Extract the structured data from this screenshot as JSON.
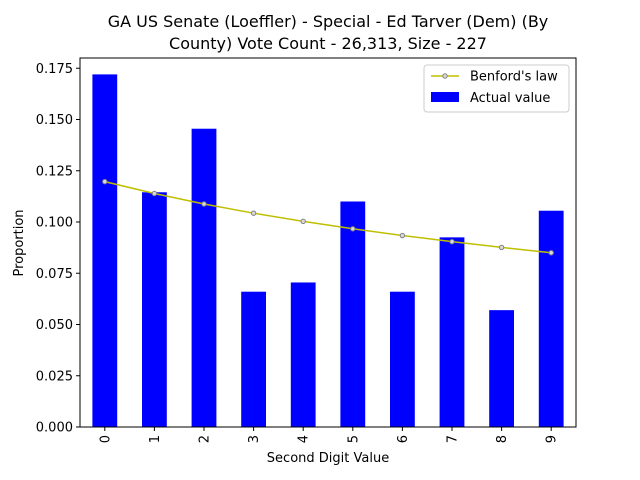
{
  "chart_data": {
    "type": "bar",
    "title_line1": "GA US Senate (Loeffler) - Special - Ed Tarver (Dem) (By",
    "title_line2": "County) Vote Count - 26,313, Size - 227",
    "xlabel": "Second Digit Value",
    "ylabel": "Proportion",
    "categories": [
      "0",
      "1",
      "2",
      "3",
      "4",
      "5",
      "6",
      "7",
      "8",
      "9"
    ],
    "ylim": [
      0,
      0.18
    ],
    "yticks": [
      "0.000",
      "0.025",
      "0.050",
      "0.075",
      "0.100",
      "0.125",
      "0.150",
      "0.175"
    ],
    "series": [
      {
        "name": "Actual value",
        "type": "bar",
        "color": "#0000ff",
        "values": [
          0.172,
          0.1145,
          0.1455,
          0.066,
          0.0705,
          0.11,
          0.066,
          0.0925,
          0.057,
          0.1055
        ]
      },
      {
        "name": "Benford's law",
        "type": "line",
        "color": "#bfbf00",
        "values": [
          0.1197,
          0.1139,
          0.1088,
          0.1043,
          0.1003,
          0.0967,
          0.0934,
          0.0904,
          0.0876,
          0.085
        ]
      }
    ],
    "legend_position": "top-right",
    "grid": false
  }
}
